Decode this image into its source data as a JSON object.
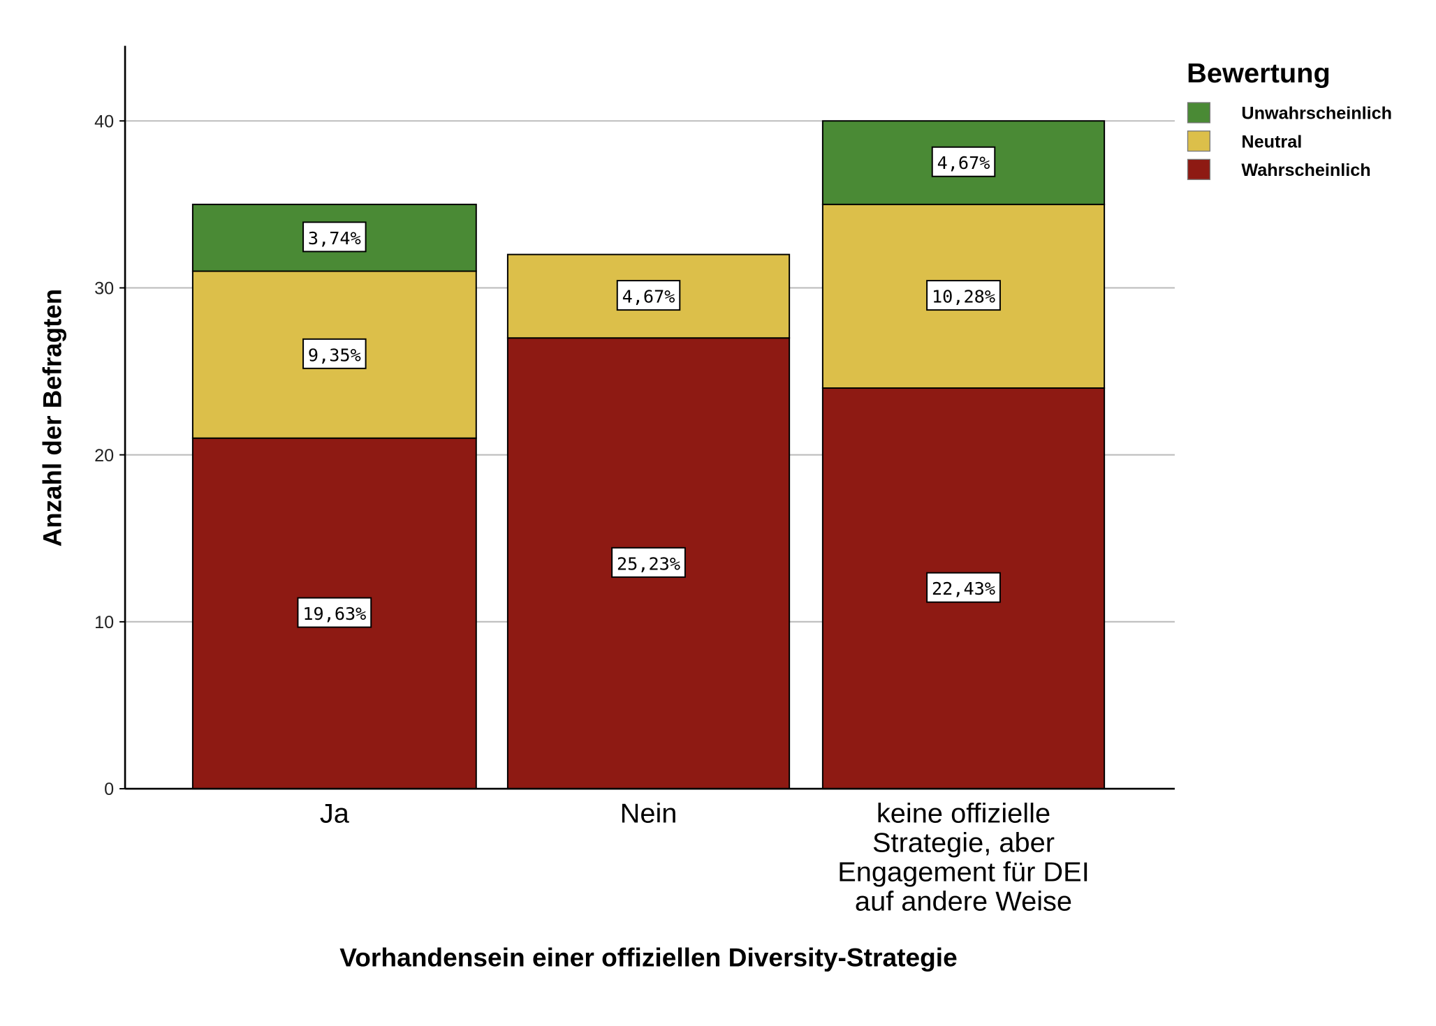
{
  "chart_data": {
    "type": "bar",
    "stacked": true,
    "categories": [
      "Ja",
      "Nein",
      "keine offizielle Strategie, aber Engagement für DEI auf andere Weise"
    ],
    "category_lines": [
      [
        "Ja"
      ],
      [
        "Nein"
      ],
      [
        "keine offizielle",
        "Strategie, aber",
        "Engagement für DEI",
        "auf andere Weise"
      ]
    ],
    "series": [
      {
        "name": "Wahrscheinlich",
        "color": "#8e1a13",
        "values": [
          21,
          27,
          24
        ],
        "labels": [
          "19,63%",
          "25,23%",
          "22,43%"
        ]
      },
      {
        "name": "Neutral",
        "color": "#dcbf4a",
        "values": [
          10,
          5,
          11
        ],
        "labels": [
          "9,35%",
          "4,67%",
          "10,28%"
        ]
      },
      {
        "name": "Unwahrscheinlich",
        "color": "#4a8a35",
        "values": [
          4,
          0,
          5
        ],
        "labels": [
          "3,74%",
          "",
          "4,67%"
        ]
      }
    ],
    "xlabel": "Vorhandensein einer offiziellen Diversity-Strategie",
    "ylabel": "Anzahl der Befragten",
    "ylim": [
      0,
      44
    ],
    "yticks": [
      0,
      10,
      20,
      30,
      40
    ],
    "grid": true,
    "legend": {
      "title": "Bewertung",
      "position": "top-right",
      "order": [
        "Unwahrscheinlich",
        "Neutral",
        "Wahrscheinlich"
      ]
    }
  }
}
